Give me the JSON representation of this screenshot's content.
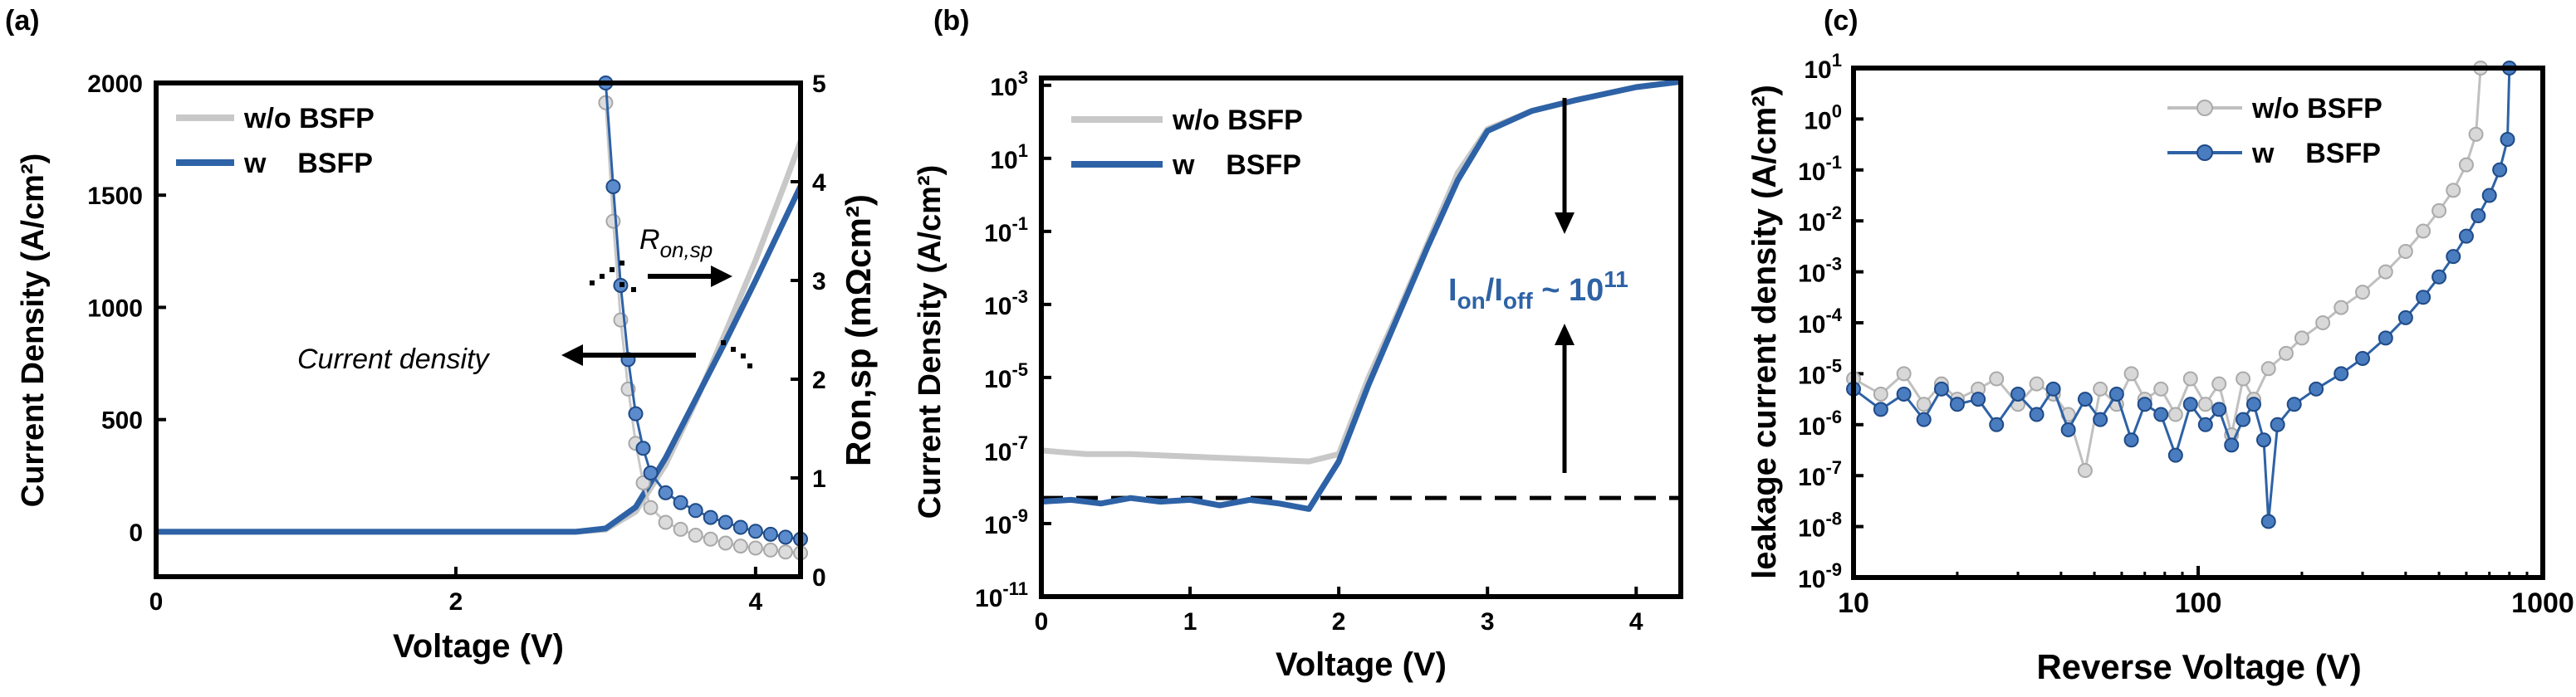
{
  "chart_data": [
    {
      "panel": "(a)",
      "type": "line",
      "xlabel": "Voltage (V)",
      "ylabel": "Current Density (A/cm²)",
      "y2label": "Ron,sp (mΩcm²)",
      "xlim": [
        0,
        4.3
      ],
      "ylim": [
        -200,
        2000
      ],
      "y2lim": [
        0,
        5
      ],
      "xticks": [
        "0",
        "2",
        "4"
      ],
      "yticks": [
        "0",
        "500",
        "1000",
        "1500",
        "2000"
      ],
      "y2ticks": [
        "0",
        "1",
        "2",
        "3",
        "4",
        "5"
      ],
      "legend": [
        "w/o BSFP",
        "w    BSFP"
      ],
      "legend_position": "top-left",
      "annotations": {
        "ron_main": "R",
        "ron_sub": "on,sp",
        "current": "Current density"
      },
      "series": [
        {
          "name": "w/o BSFP current",
          "axis": "left",
          "color": "#c8c8c8",
          "x": [
            0,
            2.8,
            3.0,
            3.2,
            3.4,
            3.6,
            3.8,
            4.0,
            4.2,
            4.3
          ],
          "y": [
            0,
            0,
            10,
            90,
            300,
            580,
            890,
            1210,
            1560,
            1740
          ]
        },
        {
          "name": "w BSFP current",
          "axis": "left",
          "color": "#2e62a6",
          "x": [
            0,
            2.8,
            3.0,
            3.2,
            3.4,
            3.6,
            3.8,
            4.0,
            4.2,
            4.3
          ],
          "y": [
            0,
            0,
            15,
            110,
            330,
            590,
            850,
            1120,
            1400,
            1540
          ]
        },
        {
          "name": "w/o BSFP Ron,sp",
          "axis": "right",
          "color": "#c8c8c8",
          "x": [
            3.0,
            3.05,
            3.1,
            3.15,
            3.2,
            3.25,
            3.3,
            3.4,
            3.5,
            3.6,
            3.7,
            3.8,
            3.9,
            4.0,
            4.1,
            4.2,
            4.3
          ],
          "y": [
            4.8,
            3.6,
            2.6,
            1.9,
            1.35,
            0.95,
            0.7,
            0.55,
            0.48,
            0.42,
            0.38,
            0.34,
            0.31,
            0.29,
            0.27,
            0.25,
            0.24
          ]
        },
        {
          "name": "w BSFP Ron,sp",
          "axis": "right",
          "color": "#2e62a6",
          "x": [
            3.0,
            3.05,
            3.1,
            3.15,
            3.2,
            3.25,
            3.3,
            3.4,
            3.5,
            3.6,
            3.7,
            3.8,
            3.9,
            4.0,
            4.1,
            4.2,
            4.3
          ],
          "y": [
            5.0,
            3.95,
            2.95,
            2.2,
            1.65,
            1.3,
            1.05,
            0.85,
            0.75,
            0.67,
            0.6,
            0.55,
            0.5,
            0.46,
            0.43,
            0.4,
            0.38
          ]
        }
      ]
    },
    {
      "panel": "(b)",
      "type": "line",
      "yscale": "log",
      "xlabel": "Voltage (V)",
      "ylabel": "Current Density (A/cm²)",
      "xlim": [
        0,
        4.3
      ],
      "ylim_exp": [
        -11,
        3.2
      ],
      "xticks": [
        "0",
        "1",
        "2",
        "3",
        "4"
      ],
      "yticks_exp": [
        "3",
        "1",
        "-1",
        "-3",
        "-5",
        "-7",
        "-9",
        "-11"
      ],
      "legend": [
        "w/o BSFP",
        "w    BSFP"
      ],
      "legend_position": "top-left",
      "annotation": {
        "I": "I",
        "on": "on",
        "slash": "/I",
        "off": "off",
        "tilde": " ~ 10",
        "exp": "11"
      },
      "reference_line_log10": -8.3,
      "series": [
        {
          "name": "w/o BSFP",
          "color": "#c8c8c8",
          "x": [
            0,
            0.3,
            0.6,
            0.9,
            1.2,
            1.5,
            1.8,
            2.0,
            2.2,
            2.4,
            2.6,
            2.8,
            3.0,
            3.3,
            3.6,
            4.0,
            4.3
          ],
          "log10y": [
            -7.0,
            -7.1,
            -7.1,
            -7.15,
            -7.2,
            -7.25,
            -7.3,
            -7.1,
            -5.0,
            -3.2,
            -1.3,
            0.6,
            1.8,
            2.3,
            2.6,
            2.95,
            3.1
          ]
        },
        {
          "name": "w BSFP",
          "color": "#2e62a6",
          "x": [
            0,
            0.2,
            0.4,
            0.6,
            0.8,
            1.0,
            1.2,
            1.4,
            1.6,
            1.8,
            2.0,
            2.2,
            2.4,
            2.6,
            2.8,
            3.0,
            3.3,
            3.6,
            4.0,
            4.3
          ],
          "log10y": [
            -8.4,
            -8.35,
            -8.45,
            -8.3,
            -8.4,
            -8.35,
            -8.5,
            -8.35,
            -8.45,
            -8.6,
            -7.3,
            -5.2,
            -3.3,
            -1.4,
            0.4,
            1.75,
            2.3,
            2.6,
            2.95,
            3.1
          ]
        }
      ]
    },
    {
      "panel": "(c)",
      "type": "line",
      "xscale": "log",
      "yscale": "log",
      "xlabel": "Reverse Voltage  (V)",
      "ylabel": "leakage current density (A/cm²)",
      "xlim_exp": [
        1,
        3
      ],
      "ylim_exp": [
        -9,
        1
      ],
      "xticks": [
        "10",
        "100",
        "1000"
      ],
      "yticks_exp": [
        "1",
        "0",
        "-1",
        "-2",
        "-3",
        "-4",
        "-5",
        "-6",
        "-7",
        "-8",
        "-9"
      ],
      "legend": [
        "w/o BSFP",
        "w    BSFP"
      ],
      "legend_position": "top-right",
      "series": [
        {
          "name": "w/o BSFP",
          "color": "#c0c0c0",
          "x": [
            10,
            12,
            14,
            16,
            18,
            20,
            23,
            26,
            30,
            34,
            38,
            42,
            47,
            52,
            58,
            64,
            70,
            78,
            86,
            95,
            105,
            115,
            125,
            135,
            145,
            160,
            180,
            200,
            230,
            260,
            300,
            350,
            400,
            450,
            500,
            550,
            600,
            640,
            660
          ],
          "log10y": [
            -5.1,
            -5.4,
            -5.0,
            -5.6,
            -5.2,
            -5.5,
            -5.3,
            -5.1,
            -5.6,
            -5.2,
            -5.4,
            -5.8,
            -6.9,
            -5.3,
            -5.6,
            -5.0,
            -5.5,
            -5.3,
            -5.8,
            -5.1,
            -5.6,
            -5.2,
            -6.2,
            -5.1,
            -5.5,
            -4.9,
            -4.6,
            -4.3,
            -4.0,
            -3.7,
            -3.4,
            -3.0,
            -2.6,
            -2.2,
            -1.8,
            -1.4,
            -0.9,
            -0.3,
            1.0
          ]
        },
        {
          "name": "w BSFP",
          "color": "#2e62a6",
          "x": [
            10,
            12,
            14,
            16,
            18,
            20,
            23,
            26,
            30,
            34,
            38,
            42,
            47,
            52,
            58,
            64,
            70,
            78,
            86,
            95,
            105,
            115,
            125,
            135,
            145,
            155,
            160,
            170,
            190,
            220,
            260,
            300,
            350,
            400,
            450,
            500,
            550,
            600,
            650,
            700,
            750,
            790,
            800
          ],
          "log10y": [
            -5.3,
            -5.7,
            -5.4,
            -5.9,
            -5.3,
            -5.6,
            -5.5,
            -6.0,
            -5.4,
            -5.8,
            -5.3,
            -6.1,
            -5.5,
            -5.9,
            -5.4,
            -6.3,
            -5.6,
            -5.8,
            -6.6,
            -5.6,
            -6.0,
            -5.7,
            -6.4,
            -5.9,
            -5.6,
            -6.3,
            -7.9,
            -6.0,
            -5.6,
            -5.3,
            -5.0,
            -4.7,
            -4.3,
            -3.9,
            -3.5,
            -3.1,
            -2.7,
            -2.3,
            -1.9,
            -1.5,
            -1.0,
            -0.4,
            1.0
          ]
        }
      ]
    }
  ]
}
